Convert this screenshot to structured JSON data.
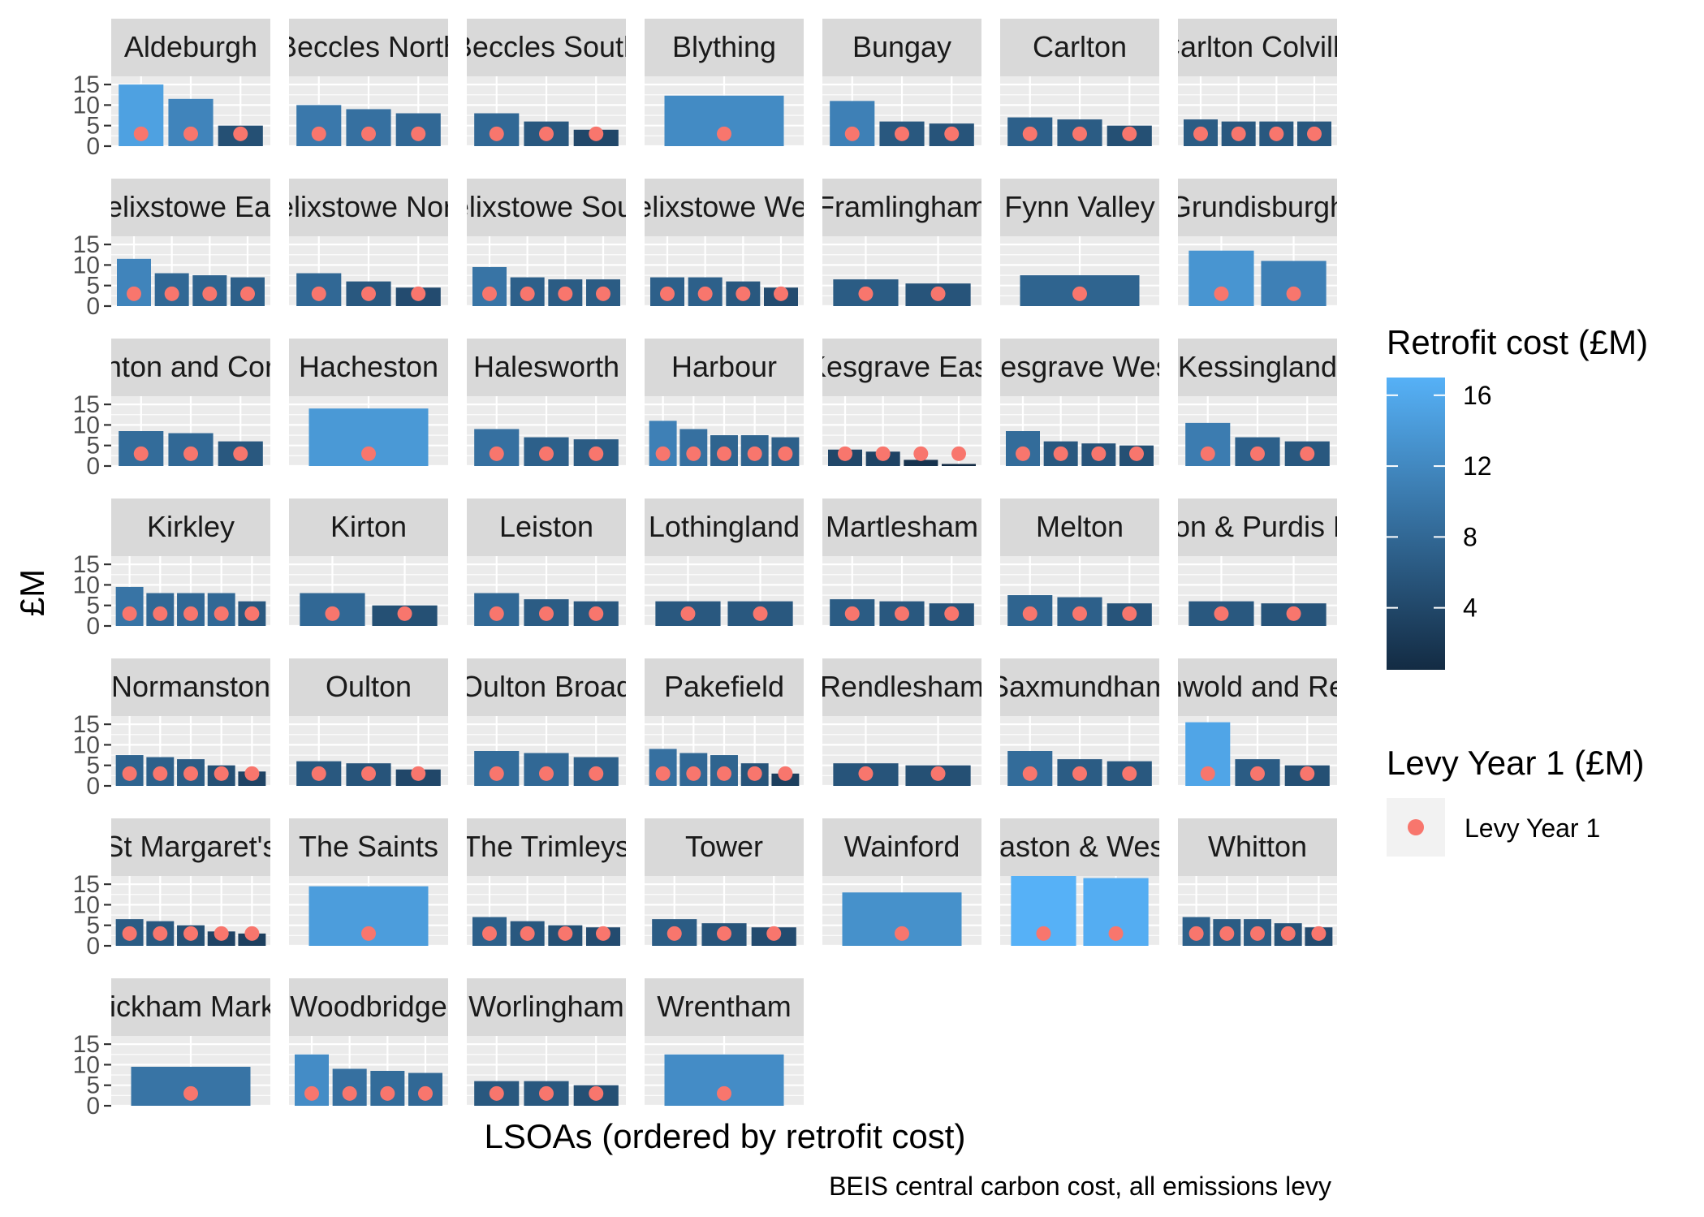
{
  "chart_data": {
    "type": "bar",
    "facet_layout": "wrap",
    "ylabel": "£M",
    "xlabel": "LSOAs (ordered by retrofit cost)",
    "caption": "BEIS central carbon cost, all emissions levy",
    "ylim": [
      0,
      17
    ],
    "yticks": [
      0,
      5,
      10,
      15
    ],
    "grid": true,
    "legend_placement": "right",
    "colors": {
      "fill_low": "#132B43",
      "fill_high": "#56B1F7",
      "levy_point": "#F8766D",
      "panel_bg": "#EBEBEB",
      "strip_bg": "#D9D9D9",
      "grid": "#FFFFFF"
    },
    "fill_legend": {
      "title": "Retrofit cost (£M)",
      "breaks": [
        4,
        8,
        12,
        16
      ],
      "labels": [
        "4",
        "8",
        "12",
        "16"
      ],
      "range": [
        0.5,
        17
      ]
    },
    "point_legend": {
      "title": "Levy Year 1 (£M)",
      "entries": [
        "Levy Year 1"
      ]
    },
    "panels": [
      {
        "name": "Aldeburgh",
        "bars": [
          15,
          11.5,
          5
        ],
        "levy": [
          3,
          3,
          3
        ]
      },
      {
        "name": "Beccles North",
        "bars": [
          10,
          9,
          8
        ],
        "levy": [
          3,
          3,
          3
        ]
      },
      {
        "name": "Beccles South",
        "bars": [
          8,
          6,
          4
        ],
        "levy": [
          3,
          3,
          3
        ]
      },
      {
        "name": "Blything",
        "bars": [
          12.3
        ],
        "levy": [
          3
        ]
      },
      {
        "name": "Bungay",
        "bars": [
          11,
          6,
          5.5
        ],
        "levy": [
          3,
          3,
          3
        ]
      },
      {
        "name": "Carlton",
        "bars": [
          7,
          6.5,
          5
        ],
        "levy": [
          3,
          3,
          3
        ]
      },
      {
        "name": "Carlton Colville",
        "bars": [
          6.5,
          6,
          6,
          6
        ],
        "levy": [
          3,
          3,
          3,
          3
        ]
      },
      {
        "name": "Felixstowe East",
        "bars": [
          11.5,
          8,
          7.5,
          7
        ],
        "levy": [
          3,
          3,
          3,
          3
        ]
      },
      {
        "name": "Felixstowe North",
        "bars": [
          8,
          6,
          4.5
        ],
        "levy": [
          3,
          3,
          3
        ]
      },
      {
        "name": "Felixstowe South",
        "bars": [
          9.5,
          7,
          6.5,
          6.5
        ],
        "levy": [
          3,
          3,
          3,
          3
        ]
      },
      {
        "name": "Felixstowe West",
        "bars": [
          7,
          7,
          6,
          4.5
        ],
        "levy": [
          3,
          3,
          3,
          3
        ]
      },
      {
        "name": "Framlingham",
        "bars": [
          6.5,
          5.5
        ],
        "levy": [
          3,
          3
        ]
      },
      {
        "name": "Fynn Valley",
        "bars": [
          7.5
        ],
        "levy": [
          3
        ]
      },
      {
        "name": "Grundisburgh",
        "bars": [
          13.5,
          11
        ],
        "levy": [
          3,
          3
        ]
      },
      {
        "name": "Gunton and Corton",
        "bars": [
          8.5,
          8,
          6
        ],
        "levy": [
          3,
          3,
          3
        ]
      },
      {
        "name": "Hacheston",
        "bars": [
          14
        ],
        "levy": [
          3
        ]
      },
      {
        "name": "Halesworth",
        "bars": [
          9,
          7,
          6.5
        ],
        "levy": [
          3,
          3,
          3
        ]
      },
      {
        "name": "Harbour",
        "bars": [
          11,
          9,
          7.5,
          7.5,
          7
        ],
        "levy": [
          3,
          3,
          3,
          3,
          3
        ]
      },
      {
        "name": "Kesgrave East",
        "bars": [
          4,
          3.5,
          1.5,
          0.5
        ],
        "levy": [
          3,
          3,
          3,
          3
        ]
      },
      {
        "name": "Kesgrave West",
        "bars": [
          8.5,
          6,
          5.5,
          5
        ],
        "levy": [
          3,
          3,
          3,
          3
        ]
      },
      {
        "name": "Kessingland",
        "bars": [
          10.5,
          7,
          6
        ],
        "levy": [
          3,
          3,
          3
        ]
      },
      {
        "name": "Kirkley",
        "bars": [
          9.5,
          8,
          8,
          8,
          6
        ],
        "levy": [
          3,
          3,
          3,
          3,
          3
        ]
      },
      {
        "name": "Kirton",
        "bars": [
          8,
          5
        ],
        "levy": [
          3,
          3
        ]
      },
      {
        "name": "Leiston",
        "bars": [
          8,
          6.5,
          6
        ],
        "levy": [
          3,
          3,
          3
        ]
      },
      {
        "name": "Lothingland",
        "bars": [
          6,
          6
        ],
        "levy": [
          3,
          3
        ]
      },
      {
        "name": "Martlesham",
        "bars": [
          6.5,
          6,
          5.5
        ],
        "levy": [
          3,
          3,
          3
        ]
      },
      {
        "name": "Melton",
        "bars": [
          7.5,
          7,
          5.5
        ],
        "levy": [
          3,
          3,
          3
        ]
      },
      {
        "name": "Nacton & Purdis Farm",
        "bars": [
          6,
          5.5
        ],
        "levy": [
          3,
          3
        ]
      },
      {
        "name": "Normanston",
        "bars": [
          7.5,
          7,
          6.5,
          5,
          3.5
        ],
        "levy": [
          3,
          3,
          3,
          3,
          3
        ]
      },
      {
        "name": "Oulton",
        "bars": [
          6,
          5.5,
          4
        ],
        "levy": [
          3,
          3,
          3
        ]
      },
      {
        "name": "Oulton Broad",
        "bars": [
          8.5,
          8,
          7
        ],
        "levy": [
          3,
          3,
          3
        ]
      },
      {
        "name": "Pakefield",
        "bars": [
          9,
          8,
          7.5,
          5.5,
          3
        ],
        "levy": [
          3,
          3,
          3,
          3,
          3
        ]
      },
      {
        "name": "Rendlesham",
        "bars": [
          5.5,
          5
        ],
        "levy": [
          3,
          3
        ]
      },
      {
        "name": "Saxmundham",
        "bars": [
          8.5,
          6.5,
          6
        ],
        "levy": [
          3,
          3,
          3
        ]
      },
      {
        "name": "Southwold and Reydon",
        "bars": [
          15.5,
          6.5,
          5
        ],
        "levy": [
          3,
          3,
          3
        ]
      },
      {
        "name": "St Margaret's",
        "bars": [
          6.5,
          6,
          5,
          3.5,
          3
        ],
        "levy": [
          3,
          3,
          3,
          3,
          3
        ]
      },
      {
        "name": "The Saints",
        "bars": [
          14.5
        ],
        "levy": [
          3
        ]
      },
      {
        "name": "The Trimleys",
        "bars": [
          7,
          6,
          5,
          4.5
        ],
        "levy": [
          3,
          3,
          3,
          3
        ]
      },
      {
        "name": "Tower",
        "bars": [
          6.5,
          5.5,
          4.5
        ],
        "levy": [
          3,
          3,
          3
        ]
      },
      {
        "name": "Wainford",
        "bars": [
          13
        ],
        "levy": [
          3
        ]
      },
      {
        "name": "Wenhaston & Westleton",
        "bars": [
          17,
          16.5
        ],
        "levy": [
          3,
          3
        ]
      },
      {
        "name": "Whitton",
        "bars": [
          7,
          6.5,
          6.5,
          5.5,
          4.5
        ],
        "levy": [
          3,
          3,
          3,
          3,
          3
        ]
      },
      {
        "name": "Wickham Market",
        "bars": [
          9.5
        ],
        "levy": [
          3
        ]
      },
      {
        "name": "Woodbridge",
        "bars": [
          12.5,
          9,
          8.5,
          8
        ],
        "levy": [
          3,
          3,
          3,
          3
        ]
      },
      {
        "name": "Worlingham",
        "bars": [
          6,
          6,
          5
        ],
        "levy": [
          3,
          3,
          3
        ]
      },
      {
        "name": "Wrentham",
        "bars": [
          12.5
        ],
        "levy": [
          3
        ]
      }
    ]
  }
}
